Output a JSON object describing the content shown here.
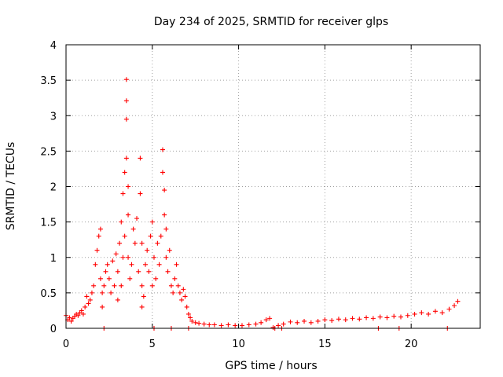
{
  "chart_data": {
    "type": "scatter",
    "title": "Day 234 of 2025, SRMTID for receiver glps",
    "xlabel": "GPS time / hours",
    "ylabel": "SRMTID / TECUs",
    "xlim": [
      0,
      24
    ],
    "ylim": [
      0,
      4
    ],
    "xticks": [
      0,
      5,
      10,
      15,
      20
    ],
    "xtick_labels": [
      "0",
      "5",
      "10",
      "15",
      "20"
    ],
    "yticks": [
      0,
      0.5,
      1,
      1.5,
      2,
      2.5,
      3,
      3.5,
      4
    ],
    "ytick_labels": [
      "0",
      "0.5",
      "1",
      "1.5",
      "2",
      "2.5",
      "3",
      "3.5",
      "4"
    ],
    "grid": true,
    "marker": "+",
    "color": "#ff0000",
    "series": [
      {
        "name": "SRMTID",
        "x": [
          0.0,
          0.1,
          0.2,
          0.3,
          0.4,
          0.5,
          0.6,
          0.7,
          0.8,
          0.9,
          1.0,
          1.1,
          1.2,
          1.3,
          1.4,
          1.5,
          1.6,
          1.7,
          1.8,
          1.9,
          2.0,
          2.0,
          2.1,
          2.1,
          2.2,
          2.3,
          2.4,
          2.5,
          2.6,
          2.7,
          2.8,
          2.9,
          3.0,
          3.0,
          3.1,
          3.2,
          3.2,
          3.3,
          3.3,
          3.4,
          3.4,
          3.5,
          3.5,
          3.5,
          3.5,
          3.6,
          3.6,
          3.6,
          3.7,
          3.8,
          3.9,
          4.0,
          4.1,
          4.2,
          4.3,
          4.3,
          4.4,
          4.4,
          4.4,
          4.5,
          4.6,
          4.7,
          4.8,
          4.9,
          5.0,
          5.0,
          5.1,
          5.2,
          5.3,
          5.4,
          5.5,
          5.6,
          5.6,
          5.7,
          5.7,
          5.8,
          5.8,
          5.9,
          6.0,
          6.1,
          6.2,
          6.3,
          6.4,
          6.5,
          6.6,
          6.7,
          6.8,
          6.9,
          7.0,
          7.1,
          7.2,
          7.3,
          7.5,
          7.7,
          8.0,
          8.3,
          8.6,
          9.0,
          9.4,
          9.8,
          10.2,
          10.6,
          11.0,
          11.3,
          11.6,
          11.8,
          12.0,
          12.3,
          12.6,
          13.0,
          13.4,
          13.8,
          14.2,
          14.6,
          15.0,
          15.4,
          15.8,
          16.2,
          16.6,
          17.0,
          17.4,
          17.8,
          18.2,
          18.6,
          19.0,
          19.4,
          19.8,
          20.2,
          20.6,
          21.0,
          21.4,
          21.8,
          22.2,
          22.5,
          22.7,
          2.2,
          5.1,
          6.1,
          7.1,
          12.1,
          12.5,
          18.1,
          19.3,
          22.1
        ],
        "y": [
          0.18,
          0.12,
          0.15,
          0.1,
          0.14,
          0.17,
          0.2,
          0.18,
          0.22,
          0.25,
          0.2,
          0.3,
          0.45,
          0.35,
          0.4,
          0.5,
          0.6,
          0.9,
          1.1,
          1.3,
          1.4,
          0.7,
          0.5,
          0.3,
          0.6,
          0.8,
          0.9,
          0.7,
          0.5,
          0.95,
          0.6,
          1.05,
          0.8,
          0.4,
          1.2,
          1.5,
          0.6,
          1.9,
          1.0,
          2.2,
          1.3,
          3.51,
          3.21,
          2.95,
          2.4,
          2.0,
          1.6,
          1.0,
          0.7,
          0.9,
          1.4,
          1.2,
          1.55,
          0.8,
          2.4,
          1.9,
          1.2,
          0.6,
          0.3,
          0.45,
          0.9,
          1.1,
          0.8,
          1.3,
          1.5,
          0.6,
          1.0,
          0.7,
          1.2,
          0.9,
          1.3,
          2.52,
          2.2,
          1.95,
          1.6,
          1.4,
          1.0,
          0.8,
          1.1,
          0.6,
          0.5,
          0.7,
          0.9,
          0.6,
          0.5,
          0.4,
          0.55,
          0.45,
          0.3,
          0.2,
          0.15,
          0.1,
          0.08,
          0.07,
          0.06,
          0.05,
          0.05,
          0.04,
          0.05,
          0.04,
          0.04,
          0.05,
          0.06,
          0.08,
          0.12,
          0.14,
          0.01,
          0.04,
          0.06,
          0.09,
          0.08,
          0.1,
          0.08,
          0.1,
          0.12,
          0.11,
          0.13,
          0.12,
          0.14,
          0.13,
          0.15,
          0.14,
          0.16,
          0.15,
          0.17,
          0.16,
          0.18,
          0.2,
          0.22,
          0.2,
          0.24,
          0.22,
          0.27,
          0.32,
          0.38,
          0.0,
          0.0,
          0.0,
          0.0,
          0.0,
          0.0,
          0.0,
          0.0,
          0.0
        ]
      }
    ]
  }
}
